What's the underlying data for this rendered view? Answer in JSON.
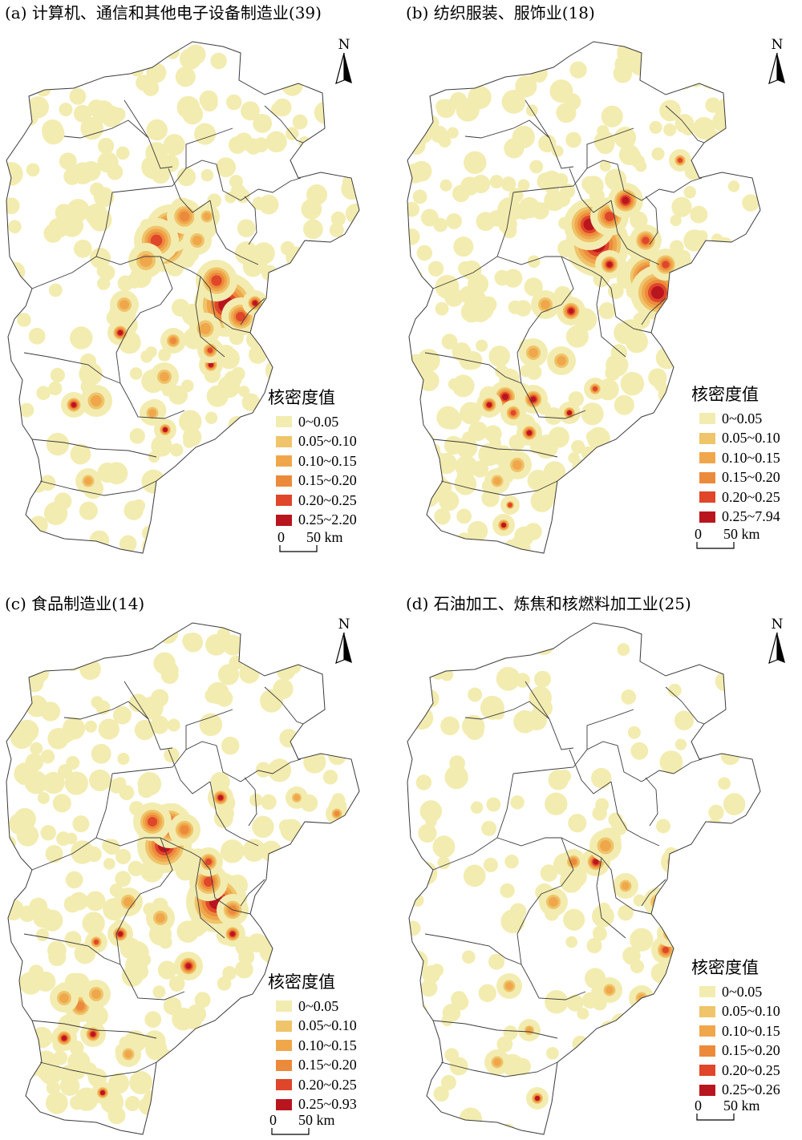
{
  "colors": {
    "c1": "#f3ecb0",
    "c2": "#efc46a",
    "c3": "#f0a74c",
    "c4": "#ec8a3c",
    "c5": "#e0462a",
    "c6": "#b8151f",
    "boundary": "#3b3b3b"
  },
  "north_label": "N",
  "legend_title": "核密度值",
  "scale_label": "50 km",
  "scale_zero": "0",
  "panels": [
    {
      "title": "(a) 计算机、通信和其他电子设备制造业(39)",
      "legend": [
        "0~0.05",
        "0.05~0.10",
        "0.10~0.15",
        "0.15~0.20",
        "0.20~0.25",
        "0.25~2.20"
      ]
    },
    {
      "title": "(b) 纺织服装、服饰业(18)",
      "legend": [
        "0~0.05",
        "0.05~0.10",
        "0.10~0.15",
        "0.15~0.20",
        "0.20~0.25",
        "0.25~7.94"
      ]
    },
    {
      "title": "(c) 食品制造业(14)",
      "legend": [
        "0~0.05",
        "0.05~0.10",
        "0.10~0.15",
        "0.15~0.20",
        "0.20~0.25",
        "0.25~0.93"
      ]
    },
    {
      "title": "(d) 石油加工、炼焦和核燃料加工业(25)",
      "legend": [
        "0~0.05",
        "0.05~0.10",
        "0.10~0.15",
        "0.15~0.20",
        "0.20~0.25",
        "0.25~0.26"
      ]
    }
  ]
}
